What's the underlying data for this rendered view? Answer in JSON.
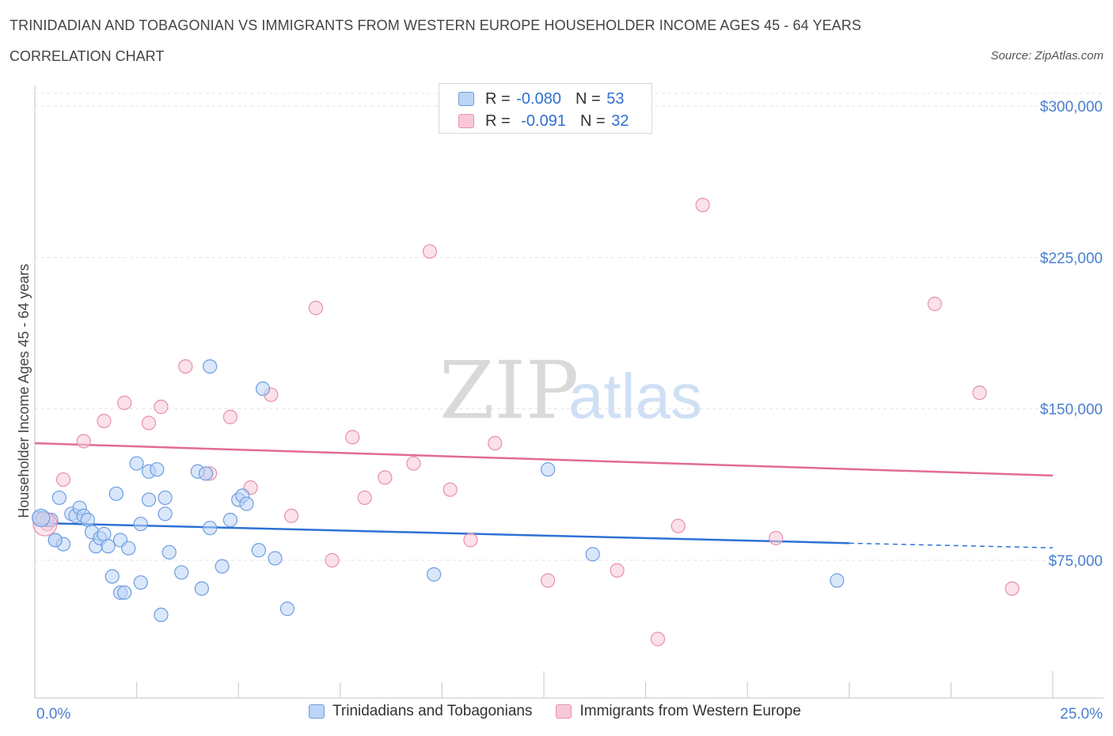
{
  "header": {
    "title": "TRINIDADIAN AND TOBAGONIAN VS IMMIGRANTS FROM WESTERN EUROPE HOUSEHOLDER INCOME AGES 45 - 64 YEARS",
    "subtitle": "CORRELATION CHART",
    "source": "Source: ZipAtlas.com"
  },
  "watermark": {
    "zip": "ZIP",
    "atlas": "atlas"
  },
  "legend": {
    "rows": [
      {
        "r_label": "R = ",
        "r_value": "-0.080",
        "n_label": "N = ",
        "n_value": "53"
      },
      {
        "r_label": "R = ",
        "r_value": "-0.091",
        "n_label": "N = ",
        "n_value": "32"
      }
    ]
  },
  "colors": {
    "blue_fill": "#bcd4f5",
    "blue_stroke": "#6d9de0",
    "blue_line": "#2c72d4",
    "pink_fill": "#f8c8d6",
    "pink_stroke": "#e890ac",
    "pink_line": "#e36b93",
    "grid": "#e3e3e3",
    "tick_text": "#4a7fd0"
  },
  "chart_data": {
    "type": "scatter",
    "title": "TRINIDADIAN AND TOBAGONIAN VS IMMIGRANTS FROM WESTERN EUROPE HOUSEHOLDER INCOME AGES 45 - 64 YEARS",
    "xlabel": "",
    "ylabel": "Householder Income Ages 45 - 64 years",
    "xlim": [
      0,
      25
    ],
    "ylim": [
      0,
      300000
    ],
    "x_tick_labels": [
      "0.0%",
      "25.0%"
    ],
    "y_ticks": [
      75000,
      150000,
      225000,
      300000
    ],
    "y_tick_labels": [
      "$75,000",
      "$150,000",
      "$225,000",
      "$300,000"
    ],
    "grid": true,
    "legend_position": "top-center",
    "series": [
      {
        "name": "Trinidadians and Tobagonians",
        "color": "#6d9de0",
        "points": [
          [
            0.1,
            96000
          ],
          [
            0.3,
            95000
          ],
          [
            0.4,
            95000
          ],
          [
            0.5,
            85000
          ],
          [
            0.6,
            106000
          ],
          [
            0.7,
            83000
          ],
          [
            0.9,
            98000
          ],
          [
            1.0,
            97000
          ],
          [
            1.1,
            101000
          ],
          [
            1.2,
            97000
          ],
          [
            1.3,
            95000
          ],
          [
            1.4,
            89000
          ],
          [
            1.5,
            82000
          ],
          [
            1.6,
            86000
          ],
          [
            1.7,
            88000
          ],
          [
            1.8,
            82000
          ],
          [
            1.9,
            67000
          ],
          [
            2.0,
            108000
          ],
          [
            2.1,
            59000
          ],
          [
            2.1,
            85000
          ],
          [
            2.2,
            59000
          ],
          [
            2.3,
            81000
          ],
          [
            2.5,
            123000
          ],
          [
            2.6,
            64000
          ],
          [
            2.6,
            93000
          ],
          [
            2.8,
            119000
          ],
          [
            2.8,
            105000
          ],
          [
            3.0,
            120000
          ],
          [
            3.1,
            48000
          ],
          [
            3.2,
            98000
          ],
          [
            3.2,
            106000
          ],
          [
            3.3,
            79000
          ],
          [
            3.6,
            69000
          ],
          [
            4.0,
            119000
          ],
          [
            4.1,
            61000
          ],
          [
            4.2,
            118000
          ],
          [
            4.3,
            171000
          ],
          [
            4.3,
            91000
          ],
          [
            4.6,
            72000
          ],
          [
            4.8,
            95000
          ],
          [
            5.0,
            105000
          ],
          [
            5.1,
            107000
          ],
          [
            5.2,
            103000
          ],
          [
            5.5,
            80000
          ],
          [
            5.6,
            160000
          ],
          [
            5.9,
            76000
          ],
          [
            6.2,
            51000
          ],
          [
            9.8,
            68000
          ],
          [
            12.6,
            120000
          ],
          [
            13.7,
            78000
          ],
          [
            19.7,
            65000
          ],
          [
            0.2,
            96000
          ],
          [
            0.5,
            85000
          ]
        ],
        "trend": {
          "x": [
            0,
            20
          ],
          "y": [
            93500,
            83500
          ]
        },
        "trend_dashed": {
          "x": [
            20,
            25
          ],
          "y": [
            83500,
            81200
          ]
        }
      },
      {
        "name": "Immigrants from Western Europe",
        "color": "#e890ac",
        "points": [
          [
            0.3,
            93000
          ],
          [
            0.7,
            115000
          ],
          [
            1.2,
            134000
          ],
          [
            1.7,
            144000
          ],
          [
            2.2,
            153000
          ],
          [
            2.8,
            143000
          ],
          [
            3.1,
            151000
          ],
          [
            3.7,
            171000
          ],
          [
            4.3,
            118000
          ],
          [
            4.8,
            146000
          ],
          [
            5.3,
            111000
          ],
          [
            5.8,
            157000
          ],
          [
            6.3,
            97000
          ],
          [
            6.9,
            200000
          ],
          [
            7.3,
            75000
          ],
          [
            7.8,
            136000
          ],
          [
            8.1,
            106000
          ],
          [
            8.6,
            116000
          ],
          [
            9.3,
            123000
          ],
          [
            9.7,
            228000
          ],
          [
            10.2,
            110000
          ],
          [
            10.7,
            85000
          ],
          [
            11.3,
            133000
          ],
          [
            12.6,
            65000
          ],
          [
            14.3,
            70000
          ],
          [
            15.3,
            36000
          ],
          [
            15.8,
            92000
          ],
          [
            16.4,
            251000
          ],
          [
            18.2,
            86000
          ],
          [
            22.1,
            202000
          ],
          [
            23.2,
            158000
          ],
          [
            24.0,
            61000
          ]
        ],
        "trend": {
          "x": [
            0,
            25
          ],
          "y": [
            133000,
            117000
          ]
        }
      }
    ]
  },
  "bottom_legend": [
    {
      "label": "Trinidadians and Tobagonians"
    },
    {
      "label": "Immigrants from Western Europe"
    }
  ]
}
